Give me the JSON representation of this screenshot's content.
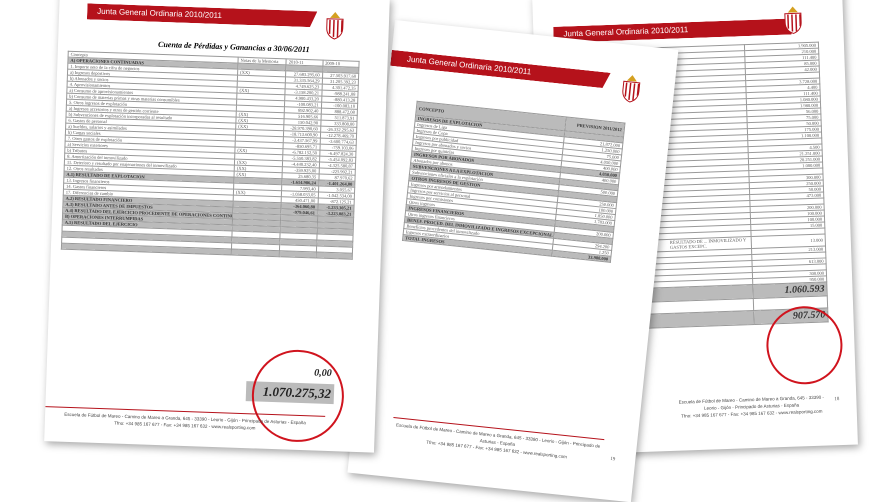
{
  "header_band": "Junta General Ordinaria 2010/2011",
  "colors": {
    "accent": "#b5121b",
    "circle": "#d0141e"
  },
  "left_doc": {
    "title": "Cuenta de Pérdidas y Ganancias a 30/06/2011",
    "columns": [
      "Concepto",
      "Notas de la Memoria",
      "2010-11",
      "2009-10"
    ],
    "rows": [
      {
        "c": "A) OPERACIONES CONTINUADAS",
        "n": "",
        "a": "",
        "b": "",
        "sec": true
      },
      {
        "c": "1. Importe neto de la cifra de negocios",
        "n": "(XX)",
        "a": "27.683.295,60",
        "b": "27.503.917,60"
      },
      {
        "c": "a) Ingresos deportivos",
        "n": "",
        "a": "31.335.564,29",
        "b": "31.205.392,23"
      },
      {
        "c": "b) Abonados y socios",
        "n": "",
        "a": "4.749.625,23",
        "b": "4.301.472,35"
      },
      {
        "c": "4. Aprovisionamientos",
        "n": "(XX)",
        "a": "-3.158.200,21",
        "b": "-988.241,08"
      },
      {
        "c": "a) Consumo de aprovisionamientos",
        "n": "",
        "a": "4.900.433,20",
        "b": "-880.413,28"
      },
      {
        "c": "b) Consumo de materias primas y otras materias consumibles",
        "n": "",
        "a": "-100.083,21",
        "b": "-100.083,10"
      },
      {
        "c": "5. Otros ingresos de explotación",
        "n": "",
        "a": "892.902,40",
        "b": "888.472,08"
      },
      {
        "c": "a) Ingresos accesorios y otros de gestión corriente",
        "n": "(XX)",
        "a": "516.905,66",
        "b": "511.873,91"
      },
      {
        "c": "b) Subvenciones de explotación incorporadas al resultado",
        "n": "(XX)",
        "a": "150.042,90",
        "b": "333.808,00"
      },
      {
        "c": "6. Gastos de personal",
        "n": "(XX)",
        "a": "-28.970.390,60",
        "b": "-26.332.295,63"
      },
      {
        "c": "a) Sueldos, salarios y asimilados",
        "n": "",
        "a": "-18.713.600,90",
        "b": "-12.278.469,70"
      },
      {
        "c": "b) Cargas sociales",
        "n": "",
        "a": "-3.437.567,99",
        "b": "-3.600.774,63"
      },
      {
        "c": "7. Otros gastos de explotación",
        "n": "",
        "a": "-850.695,71",
        "b": "-759.103,06"
      },
      {
        "c": "a) Servicios exteriores",
        "n": "(XX)",
        "a": "-6.782.152,50",
        "b": "-6.497.824,30"
      },
      {
        "c": "b) Tributos",
        "n": "",
        "a": "-5.550.383,82",
        "b": "-5.454.092,83"
      },
      {
        "c": "8. Amortización del inmovilizado",
        "n": "(XX)",
        "a": "-4.440.232,40",
        "b": "-4.325.580,87"
      },
      {
        "c": "11. Deterioro y resultado por enajenaciones del inmovilizado",
        "n": "(XX)",
        "a": "-359.925,00",
        "b": "-225.992,21"
      },
      {
        "c": "12. Otros resultados",
        "n": "(XX)",
        "a": "25.680,35",
        "b": "87.970,62"
      },
      {
        "c": "A.1) RESULTADO DE EXPLOTACIÓN",
        "n": "",
        "a": "-1.614.986,24",
        "b": "-1.401.264,00",
        "sec": true
      },
      {
        "c": "13. Ingresos financieros",
        "n": "",
        "a": "7.993,40",
        "b": "3.055,67"
      },
      {
        "c": "14. Gastos financieros",
        "n": "(XX)",
        "a": "-1.058.033,05",
        "b": "-1.042.534,00"
      },
      {
        "c": "17. Diferencias de cambio",
        "n": "",
        "a": "450.471,00",
        "b": "-872.125,21"
      },
      {
        "c": "A.2) RESULTADO FINANCIERO",
        "n": "",
        "a": "-364.060,80",
        "b": "-1.233.305,21",
        "sec": true
      },
      {
        "c": "A.3) RESULTADO ANTES DE IMPUESTOS",
        "n": "",
        "a": "-979.046,61",
        "b": "-3.223.083,21",
        "sec": true
      },
      {
        "c": "A.4) RESULTADO DEL EJERCICIO PROCEDENTE DE OPERACIONES CONTINUADAS",
        "n": "",
        "a": "",
        "b": "",
        "sec": true
      },
      {
        "c": "B) OPERACIONES INTERRUMPIDAS",
        "n": "",
        "a": "",
        "b": "",
        "sec": true
      },
      {
        "c": "A.5) RESULTADO DEL EJERCICIO",
        "n": "",
        "a": "",
        "b": "",
        "sec": true
      }
    ],
    "highlight_zero": "0,00",
    "highlight_total": "1.070.275,32"
  },
  "middle_doc": {
    "columns": [
      "CONCEPTO",
      "PREVISION 2011/2012"
    ],
    "rows": [
      {
        "c": "INGRESOS DE EXPLOTACION",
        "v": "",
        "sec": true
      },
      {
        "c": "Ingresos de Liga",
        "v": "21.872.000"
      },
      {
        "c": "Ingresos de Copa",
        "v": "1.250.000"
      },
      {
        "c": "Ingresos por publicidad",
        "v": "75.000"
      },
      {
        "c": "Ingresos por abonados y socios",
        "v": "4.050.000"
      },
      {
        "c": "Ingresos por quinielas",
        "v": "400.000"
      },
      {
        "c": "INGRESOS POR ABONADOS",
        "v": "4.050.000",
        "sec": true
      },
      {
        "c": "Abonados por abonos",
        "v": "400.000"
      },
      {
        "c": "SUBVENCIONES A LA EXPLOTACION",
        "v": "",
        "sec": true
      },
      {
        "c": "Subvenciones oficiales a la explotación",
        "v": "500.000"
      },
      {
        "c": "OTROS INGRESOS DE GESTION",
        "v": "",
        "sec": true
      },
      {
        "c": "Ingresos por arrendamientos",
        "v": "250.000"
      },
      {
        "c": "Ingresos por servicios al personal",
        "v": "100.000"
      },
      {
        "c": "Ingresos por comisiones",
        "v": "1.850.000"
      },
      {
        "c": "Otros ingresos",
        "v": "1.783.000"
      },
      {
        "c": "INGRESOS FINANCIEROS",
        "v": "",
        "sec": true
      },
      {
        "c": "Otros ingresos financieros",
        "v": "200.000"
      },
      {
        "c": "BENEF. PROCED. DEL INMOVILIZADO E INGRESOS EXCEPCIONALES",
        "v": "",
        "sec": true
      },
      {
        "c": "Beneficios procedentes del inmovilizado",
        "v": "294.200"
      },
      {
        "c": "Ingresos extraordinarios",
        "v": "1.250"
      },
      {
        "c": "TOTAL INGRESOS",
        "v": "33.988.000",
        "sec": true
      }
    ],
    "page": "19"
  },
  "right_doc": {
    "values": [
      "1.905.000",
      "210.000",
      "111.400",
      "85.000",
      "42.000",
      "",
      "3.728.000",
      "4.400",
      "111.400",
      "1.080.000",
      "1.980.000",
      "56.000",
      "75.000",
      "50.000",
      "175.000",
      "1.100.000",
      "",
      "4.500",
      "21.251.000",
      "20.251.000",
      "1.000.000",
      "",
      "300.000",
      "250.000",
      "50.000",
      "473.000",
      "",
      "200.000",
      "100.000",
      "100.000",
      "15.000",
      "",
      "13.000",
      "213.000",
      "",
      "613.000",
      "",
      "300.000",
      "950.000"
    ],
    "labels": [
      "RESULTADO DE ... INMOVILIZADO Y GASTOS EXCEPC."
    ],
    "highlight_top": "1.060.593",
    "highlight_total": "907.570",
    "page": "18"
  },
  "footer": {
    "line1": "Escuela de Fútbol de Mareo - Camino de Mareo a Granda, 645 - 33390 - Leorio - Gijón - Principado de Asturias - España",
    "line2": "Tfno: +34 985 167 677 - Fax: +34 985 167 632 - www.realsporting.com"
  }
}
